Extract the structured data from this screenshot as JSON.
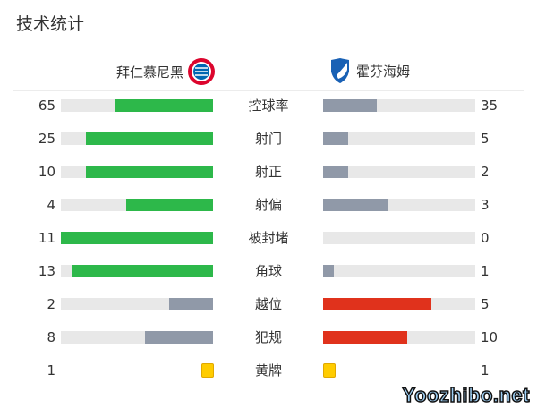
{
  "title": "技术统计",
  "home": {
    "name": "拜仁慕尼黑",
    "logo": "fc-bayern-crest"
  },
  "away": {
    "name": "霍芬海姆",
    "logo": "hoffenheim-crest"
  },
  "colors": {
    "home": "#2db84a",
    "away_gray": "#9099a8",
    "red": "#e0321c",
    "track": "#e8e8e8",
    "yellow": "#ffcc00"
  },
  "stats": [
    {
      "label": "控球率",
      "home": 65,
      "away": 35,
      "home_color": "#2db84a",
      "away_color": "#9099a8"
    },
    {
      "label": "射门",
      "home": 25,
      "away": 5,
      "home_color": "#2db84a",
      "away_color": "#9099a8"
    },
    {
      "label": "射正",
      "home": 10,
      "away": 2,
      "home_color": "#2db84a",
      "away_color": "#9099a8"
    },
    {
      "label": "射偏",
      "home": 4,
      "away": 3,
      "home_color": "#2db84a",
      "away_color": "#9099a8"
    },
    {
      "label": "被封堵",
      "home": 11,
      "away": 0,
      "home_color": "#2db84a",
      "away_color": "#9099a8"
    },
    {
      "label": "角球",
      "home": 13,
      "away": 1,
      "home_color": "#2db84a",
      "away_color": "#9099a8"
    },
    {
      "label": "越位",
      "home": 2,
      "away": 5,
      "home_color": "#9099a8",
      "away_color": "#e0321c"
    },
    {
      "label": "犯规",
      "home": 8,
      "away": 10,
      "home_color": "#9099a8",
      "away_color": "#e0321c"
    }
  ],
  "yellow": {
    "label": "黄牌",
    "home": 1,
    "away": 1
  },
  "watermark": "Yoozhibo.net"
}
